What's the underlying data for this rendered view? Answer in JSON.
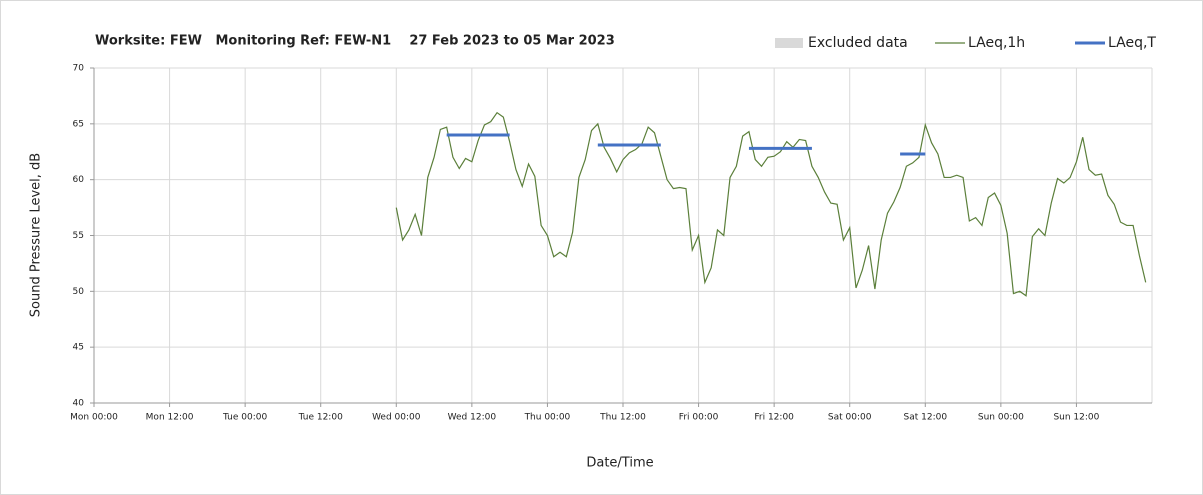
{
  "chart_data": {
    "type": "line",
    "title": "Worksite: FEW   Monitoring Ref: FEW-N1    27 Feb 2023 to 05 Mar 2023",
    "xlabel": "Date/Time",
    "ylabel": "Sound Pressure Level, dB",
    "xlim": [
      0,
      168
    ],
    "xticks": [
      {
        "value": 0,
        "label": "Mon 00:00"
      },
      {
        "value": 12,
        "label": "Mon 12:00"
      },
      {
        "value": 24,
        "label": "Tue 00:00"
      },
      {
        "value": 36,
        "label": "Tue 12:00"
      },
      {
        "value": 48,
        "label": "Wed 00:00"
      },
      {
        "value": 60,
        "label": "Wed 12:00"
      },
      {
        "value": 72,
        "label": "Thu 00:00"
      },
      {
        "value": 84,
        "label": "Thu 12:00"
      },
      {
        "value": 96,
        "label": "Fri 00:00"
      },
      {
        "value": 108,
        "label": "Fri 12:00"
      },
      {
        "value": 120,
        "label": "Sat 00:00"
      },
      {
        "value": 132,
        "label": "Sat 12:00"
      },
      {
        "value": 144,
        "label": "Sun 00:00"
      },
      {
        "value": 156,
        "label": "Sun 12:00"
      }
    ],
    "ylim": [
      40,
      70
    ],
    "yticks": [
      40,
      45,
      50,
      55,
      60,
      65,
      70
    ],
    "grid": true,
    "legend": "top-right",
    "series": [
      {
        "name": "Excluded data",
        "color": "#d9d9d9"
      },
      {
        "name": "LAeq,1h",
        "color": "#5b7f3a",
        "x": [
          48,
          49,
          50,
          51,
          52,
          53,
          54,
          55,
          56,
          57,
          58,
          59,
          60,
          61,
          62,
          63,
          64,
          65,
          66,
          67,
          68,
          69,
          70,
          71,
          72,
          73,
          74,
          75,
          76,
          77,
          78,
          79,
          80,
          81,
          82,
          83,
          84,
          85,
          86,
          87,
          88,
          89,
          90,
          91,
          92,
          93,
          94,
          95,
          96,
          97,
          98,
          99,
          100,
          101,
          102,
          103,
          104,
          105,
          106,
          107,
          108,
          109,
          110,
          111,
          112,
          113,
          114,
          115,
          116,
          117,
          118,
          119,
          120,
          121,
          122,
          123,
          124,
          125,
          126,
          127,
          128,
          129,
          130,
          131,
          132,
          133,
          134,
          135,
          136,
          137,
          138,
          139,
          140,
          141,
          142,
          143,
          144,
          145,
          146,
          147,
          148,
          149,
          150,
          151,
          152,
          153,
          154,
          155,
          156,
          157,
          158,
          159,
          160,
          161,
          162,
          163,
          164,
          165,
          166,
          167
        ],
        "values": [
          57.5,
          54.6,
          55.5,
          56.9,
          55.0,
          60.2,
          62.0,
          64.5,
          64.7,
          62.0,
          61.0,
          61.9,
          61.6,
          63.5,
          64.9,
          65.2,
          66.0,
          65.6,
          63.4,
          60.9,
          59.4,
          61.4,
          60.3,
          55.9,
          55.0,
          53.1,
          53.5,
          53.1,
          55.3,
          60.2,
          61.8,
          64.4,
          65.0,
          62.9,
          61.9,
          60.7,
          61.8,
          62.4,
          62.7,
          63.2,
          64.7,
          64.2,
          62.1,
          60.0,
          59.2,
          59.3,
          59.2,
          53.7,
          55.0,
          50.8,
          52.1,
          55.5,
          55.0,
          60.2,
          61.2,
          63.9,
          64.3,
          61.8,
          61.2,
          62.0,
          62.1,
          62.5,
          63.4,
          62.9,
          63.6,
          63.5,
          61.2,
          60.2,
          58.9,
          57.9,
          57.8,
          54.6,
          55.7,
          50.3,
          51.9,
          54.1,
          50.2,
          54.6,
          57.0,
          58.0,
          59.3,
          61.2,
          61.5,
          62.0,
          64.9,
          63.3,
          62.3,
          60.2,
          60.2,
          60.4,
          60.2,
          56.3,
          56.6,
          55.9,
          58.4,
          58.8,
          57.7,
          55.2,
          49.8,
          50.0,
          49.6,
          54.9,
          55.6,
          55.0,
          57.9,
          60.1,
          59.7,
          60.2,
          61.6,
          63.8,
          60.9,
          60.4,
          60.5,
          58.6,
          57.8,
          56.2,
          55.9,
          55.9,
          53.2,
          50.8
        ]
      },
      {
        "name": "LAeq,T",
        "color": "#4472c4",
        "segments": [
          {
            "x": [
              56,
              66
            ],
            "value": 64.0
          },
          {
            "x": [
              80,
              90
            ],
            "value": 63.1
          },
          {
            "x": [
              104,
              114
            ],
            "value": 62.8
          },
          {
            "x": [
              128,
              132
            ],
            "value": 62.3
          }
        ]
      }
    ]
  }
}
